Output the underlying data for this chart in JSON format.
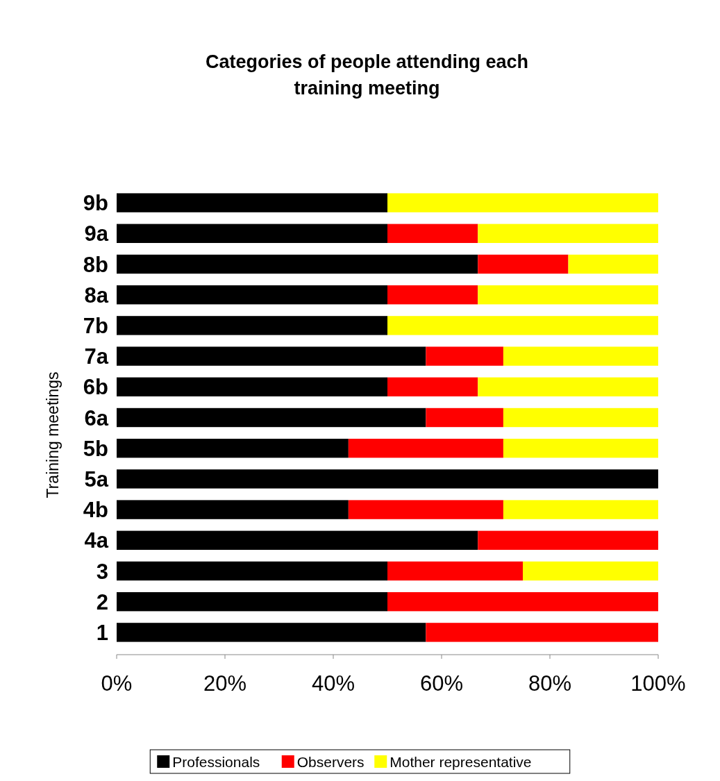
{
  "chart_data": {
    "type": "bar",
    "title": "Categories of people attending each training meeting",
    "ylabel": "Training meetings",
    "orientation": "horizontal",
    "stacked": true,
    "categories": [
      "9b",
      "9a",
      "8b",
      "8a",
      "7b",
      "7a",
      "6b",
      "6a",
      "5b",
      "5a",
      "4b",
      "4a",
      "3",
      "2",
      "1"
    ],
    "series": [
      {
        "name": "Professionals",
        "color": "#000000",
        "values": [
          50,
          50,
          66.7,
          50,
          50,
          57.1,
          50,
          57.1,
          42.8,
          100,
          42.8,
          66.7,
          50,
          50,
          57.1
        ]
      },
      {
        "name": "Observers",
        "color": "#ff0000",
        "values": [
          0,
          16.7,
          16.7,
          16.7,
          0,
          14.3,
          16.7,
          14.3,
          28.6,
          0,
          28.6,
          33.3,
          25,
          50,
          42.9
        ]
      },
      {
        "name": "Mother representative",
        "color": "#ffff00",
        "values": [
          50,
          33.3,
          16.6,
          33.3,
          50,
          28.6,
          33.3,
          28.6,
          28.6,
          0,
          28.6,
          0,
          25,
          0,
          0
        ]
      }
    ],
    "xlim": [
      0,
      100
    ],
    "xticks": [
      {
        "value": 0,
        "label": "0%"
      },
      {
        "value": 20,
        "label": "20%"
      },
      {
        "value": 40,
        "label": "40%"
      },
      {
        "value": 60,
        "label": "60%"
      },
      {
        "value": 80,
        "label": "80%"
      },
      {
        "value": 100,
        "label": "100%"
      }
    ],
    "grid": false,
    "legend": "bottom"
  }
}
